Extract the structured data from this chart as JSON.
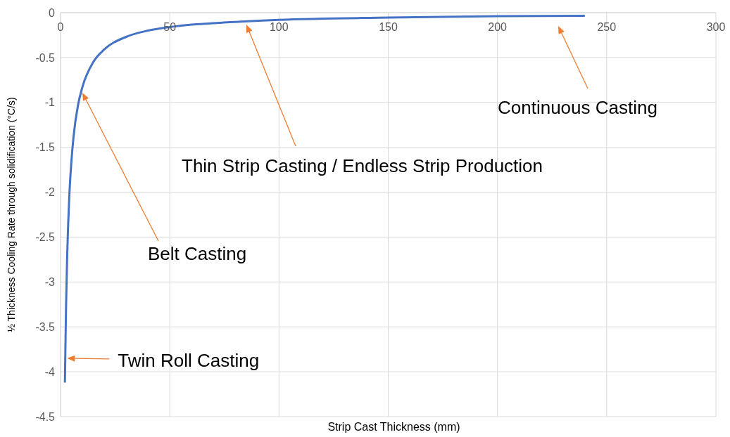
{
  "chart_data": {
    "type": "line",
    "xlabel": "Strip Cast Thickness (mm)",
    "ylabel": "½ Thickness Cooling Rate through solidification (°C/s)",
    "x": [
      2,
      2.5,
      3,
      4,
      5,
      6,
      8,
      10,
      15,
      20,
      30,
      40,
      50,
      75,
      100,
      150,
      200,
      240
    ],
    "series": [
      {
        "color": "#4472c4",
        "values": [
          -4.12,
          -3.3,
          -2.75,
          -2.05,
          -1.65,
          -1.37,
          -1.03,
          -0.83,
          -0.55,
          -0.41,
          -0.27,
          -0.2,
          -0.16,
          -0.11,
          -0.08,
          -0.055,
          -0.04,
          -0.035
        ]
      }
    ],
    "xlim": [
      0,
      300
    ],
    "xticks": [
      0,
      50,
      100,
      150,
      200,
      250,
      300
    ],
    "ylim": [
      -4.5,
      0
    ],
    "yticks": [
      -4.5,
      -4,
      -3.5,
      -3,
      -2.5,
      -2,
      -1.5,
      -1,
      -0.5,
      0
    ],
    "grid": true,
    "marker": "none",
    "line_style": "solid",
    "annotations": [
      {
        "text": "Twin Roll Casting",
        "x": 3,
        "y": -3.85
      },
      "Belt Casting",
      "Thin Strip Casting / Endless Strip Production",
      "Continuous Casting"
    ]
  }
}
